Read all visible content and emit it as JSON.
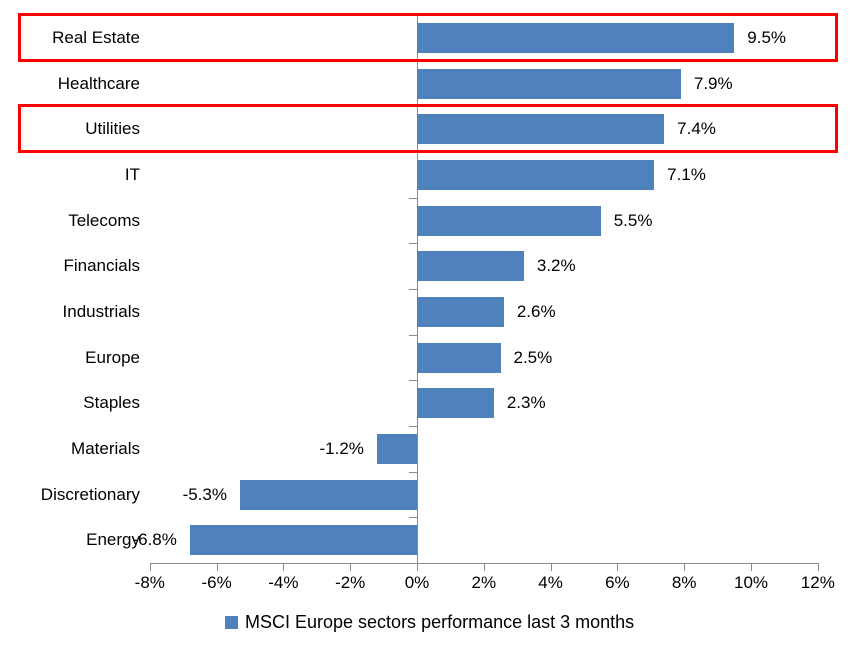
{
  "chart_data": {
    "type": "bar",
    "orientation": "horizontal",
    "title": "",
    "legend": "MSCI Europe sectors performance last 3 months",
    "legend_position": "bottom",
    "grid": false,
    "categories": [
      "Real Estate",
      "Healthcare",
      "Utilities",
      "IT",
      "Telecoms",
      "Financials",
      "Industrials",
      "Europe",
      "Staples",
      "Materials",
      "Discretionary",
      "Energy"
    ],
    "values": [
      9.5,
      7.9,
      7.4,
      7.1,
      5.5,
      3.2,
      2.6,
      2.5,
      2.3,
      -1.2,
      -5.3,
      -6.8
    ],
    "value_labels": [
      "9.5%",
      "7.9%",
      "7.4%",
      "7.1%",
      "5.5%",
      "3.2%",
      "2.6%",
      "2.5%",
      "2.3%",
      "-1.2%",
      "-5.3%",
      "-6.8%"
    ],
    "x_tick_values": [
      -8,
      -6,
      -4,
      -2,
      0,
      2,
      4,
      6,
      8,
      10,
      12
    ],
    "x_tick_labels": [
      "-8%",
      "-6%",
      "-4%",
      "-2%",
      "0%",
      "2%",
      "4%",
      "6%",
      "8%",
      "10%",
      "12%"
    ],
    "xlim": [
      -8,
      12
    ],
    "highlighted_categories": [
      "Real Estate",
      "Utilities"
    ],
    "colors": {
      "bar": "#4f81bd",
      "axis": "#8a8a8a",
      "highlight_box": "#ff0000",
      "text": "#000000"
    }
  }
}
